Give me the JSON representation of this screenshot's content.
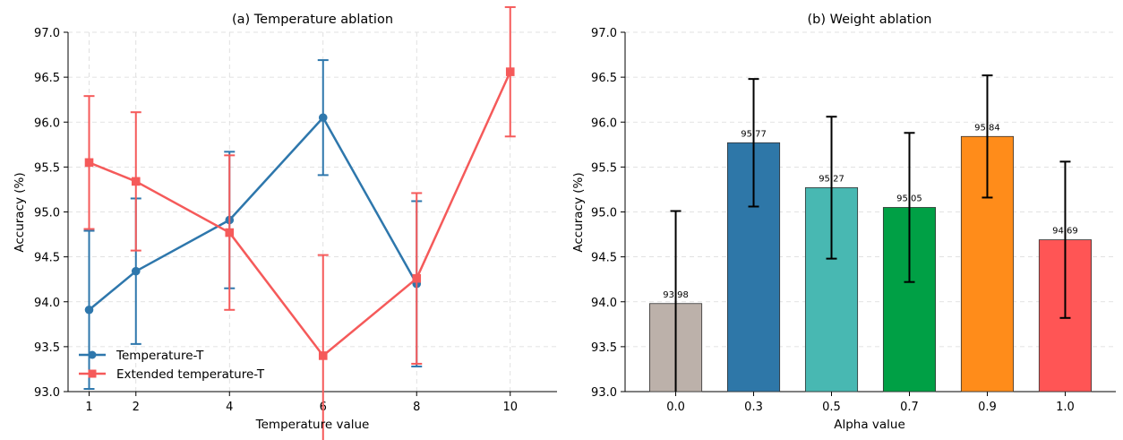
{
  "chart_data": [
    {
      "type": "line",
      "title": "(a) Temperature ablation",
      "xlabel": "Temperature value",
      "ylabel": "Accuracy (%)",
      "xlim": [
        0.55,
        11.0
      ],
      "ylim": [
        93.0,
        97.0
      ],
      "x_ticks": [
        "1",
        "2",
        "4",
        "6",
        "8",
        "10"
      ],
      "y_ticks": [
        "93.0",
        "93.5",
        "94.0",
        "94.5",
        "95.0",
        "95.5",
        "96.0",
        "96.5",
        "97.0"
      ],
      "grid": true,
      "legend_position": "lower-left",
      "series": [
        {
          "name": "Temperature-T",
          "color": "#2e77ac",
          "marker": "circle",
          "x": [
            1,
            2,
            4,
            6,
            8
          ],
          "values": [
            93.91,
            94.34,
            94.91,
            96.05,
            94.2
          ],
          "error": [
            0.88,
            0.81,
            0.76,
            0.64,
            0.92
          ]
        },
        {
          "name": "Extended temperature-T",
          "color": "#f55a5a",
          "marker": "square",
          "x": [
            1,
            2,
            4,
            6,
            8,
            10
          ],
          "values": [
            95.55,
            95.34,
            94.77,
            93.4,
            94.26,
            96.56
          ],
          "error": [
            0.74,
            0.77,
            0.86,
            1.12,
            0.95,
            0.72
          ]
        }
      ]
    },
    {
      "type": "bar",
      "title": "(b) Weight ablation",
      "xlabel": "Alpha value",
      "ylabel": "Accuracy (%)",
      "ylim": [
        93.0,
        97.0
      ],
      "y_ticks": [
        "93.0",
        "93.5",
        "94.0",
        "94.5",
        "95.0",
        "95.5",
        "96.0",
        "96.5",
        "97.0"
      ],
      "grid": true,
      "categories": [
        "0.0",
        "0.3",
        "0.5",
        "0.7",
        "0.9",
        "1.0"
      ],
      "values": [
        93.98,
        95.77,
        95.27,
        95.05,
        95.84,
        94.69
      ],
      "error": [
        1.03,
        0.71,
        0.79,
        0.83,
        0.68,
        0.87
      ],
      "value_labels": [
        "93.98",
        "95.77",
        "95.27",
        "95.05",
        "95.84",
        "94.69"
      ],
      "colors": [
        "#bcb1aa",
        "#2e77a8",
        "#48b8b2",
        "#00a045",
        "#ff8c1a",
        "#ff5555"
      ]
    }
  ]
}
